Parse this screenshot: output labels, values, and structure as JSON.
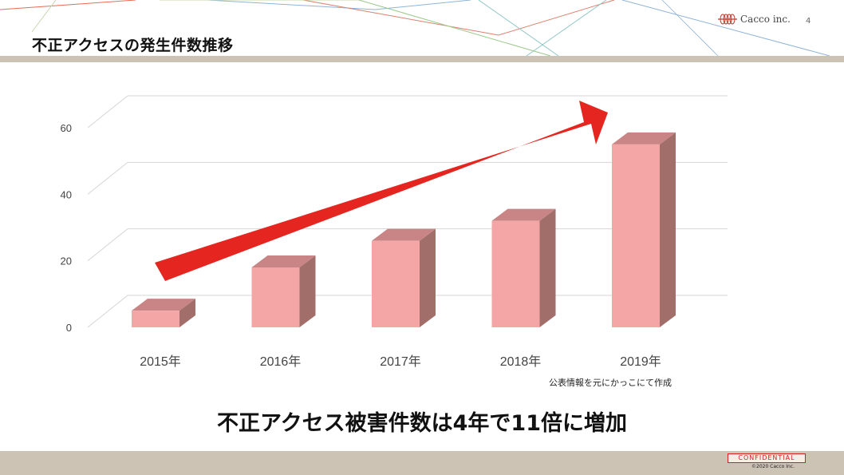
{
  "slide": {
    "title": "不正アクセスの発生件数推移",
    "logo_text": "Cacco inc.",
    "page_number": "4",
    "source_note": "公表情報を元にかっこにて作成",
    "headline": "不正アクセス被害件数は4年で11倍に増加",
    "confidential_label": "CONFIDENTIAL",
    "copyright": "©2020 Cacco Inc."
  },
  "colors": {
    "bar_front": "#f4a6a6",
    "bar_top": "#c98585",
    "bar_side": "#a16e6a",
    "arrow": "#e52620",
    "rule": "#cdc3b4"
  },
  "chart_data": {
    "type": "bar",
    "categories": [
      "2015年",
      "2016年",
      "2017年",
      "2018年",
      "2019年"
    ],
    "values": [
      5,
      18,
      26,
      32,
      55
    ],
    "ylim": [
      0,
      60
    ],
    "yticks": [
      "0",
      "20",
      "40",
      "60"
    ],
    "ytick_values": [
      0,
      20,
      40,
      60
    ],
    "grid": true,
    "three_d": true,
    "trend_arrow": "rising",
    "title": "",
    "xlabel": "",
    "ylabel": ""
  }
}
